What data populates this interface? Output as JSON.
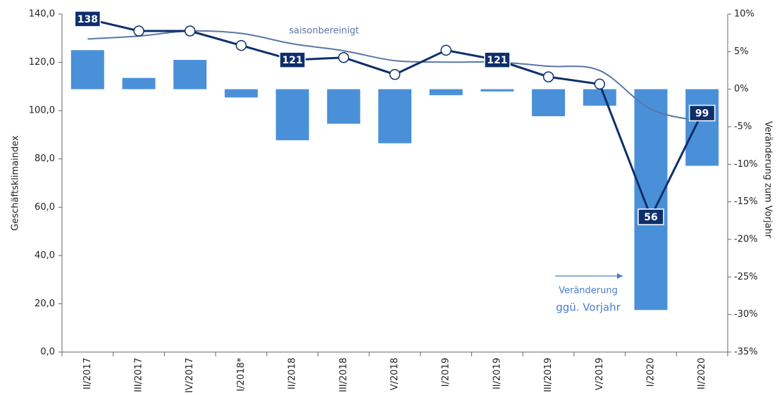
{
  "chart_data": {
    "type": "bar-line",
    "y_label": "Geschäftsklimaindex",
    "y2_label": "Veränderung zum Vorjahr",
    "annotations": [
      "saisonbereinigt",
      "Veränderung",
      "ggü. Vorjahr"
    ],
    "categories": [
      "II/2017",
      "III/2017",
      "IV/2017",
      "I/2018*",
      "II/2018",
      "III/2018",
      "V/2018",
      "I/2019",
      "II/2019",
      "III/2019",
      "V/2019",
      "I/2020",
      "II/2020"
    ],
    "ylim": [
      0,
      140
    ],
    "yticks": [
      {
        "value": 0,
        "label": "0,0"
      },
      {
        "value": 20,
        "label": "20,0"
      },
      {
        "value": 40,
        "label": "40,0"
      },
      {
        "value": 60,
        "label": "60,0"
      },
      {
        "value": 80,
        "label": "80,0"
      },
      {
        "value": 100,
        "label": "100,0"
      },
      {
        "value": 120,
        "label": "120,0"
      },
      {
        "value": 140,
        "label": "140,0"
      }
    ],
    "y2lim": [
      -35,
      10
    ],
    "y2ticks": [
      {
        "value": -35,
        "label": "-35%"
      },
      {
        "value": -30,
        "label": "-30%"
      },
      {
        "value": -25,
        "label": "-25%"
      },
      {
        "value": -20,
        "label": "-20%"
      },
      {
        "value": -15,
        "label": "-15%"
      },
      {
        "value": -10,
        "label": "-10%"
      },
      {
        "value": -5,
        "label": "-5%"
      },
      {
        "value": 0,
        "label": "0%"
      },
      {
        "value": 5,
        "label": "5%"
      },
      {
        "value": 10,
        "label": "10%"
      }
    ],
    "series": [
      {
        "kind": "bar",
        "axis": "y2",
        "color": "#4a90d9",
        "values": [
          5.2,
          1.5,
          3.9,
          -1.1,
          -6.8,
          -4.6,
          -7.2,
          -0.8,
          -0.3,
          -3.6,
          -2.2,
          -29.4,
          -10.2
        ]
      },
      {
        "kind": "line",
        "color": "#0d2f6b",
        "values": [
          138,
          133,
          133,
          127,
          121,
          122,
          115,
          125,
          121,
          114,
          111,
          56,
          99
        ],
        "value_labels": [
          "138",
          null,
          null,
          null,
          "121",
          null,
          null,
          null,
          "121",
          null,
          null,
          "56",
          "99"
        ]
      },
      {
        "kind": "smooth",
        "name": "saisonbereinigt",
        "color": "#5a76a8",
        "values": [
          129.7,
          130.9,
          133,
          132,
          127.7,
          124.8,
          120.7,
          120.1,
          120.1,
          118.4,
          116.6,
          100.6,
          95.6
        ]
      }
    ]
  }
}
